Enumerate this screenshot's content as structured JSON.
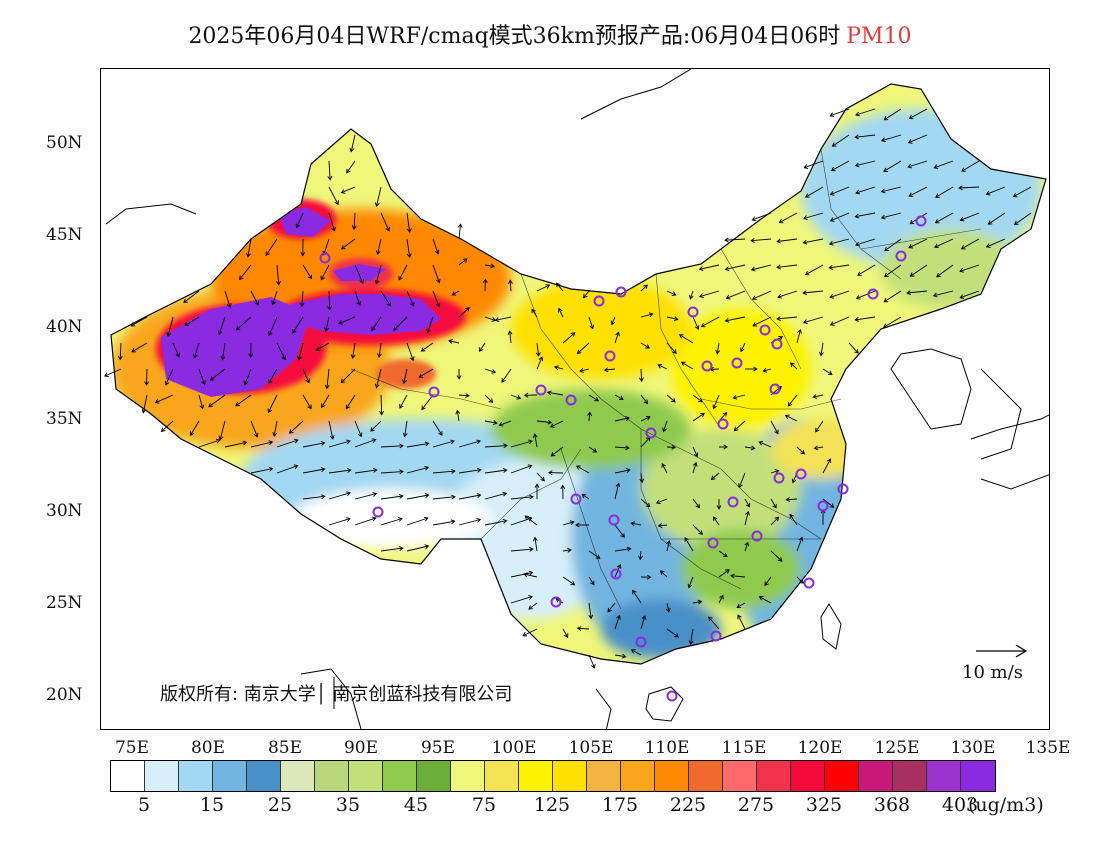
{
  "header": {
    "title": "2025年06月04日WRF/cmaq模式36km预报产品:06月04日06时",
    "variable": "PM10"
  },
  "map": {
    "lat_ticks": [
      "50N",
      "45N",
      "40N",
      "35N",
      "30N",
      "25N",
      "20N"
    ],
    "lon_ticks": [
      "75E",
      "80E",
      "85E",
      "90E",
      "95E",
      "100E",
      "105E",
      "110E",
      "115E",
      "120E",
      "125E",
      "130E",
      "135E"
    ],
    "copyright": "版权所有: 南京大学│ 南京创蓝科技有限公司",
    "wind_reference": "10 m/s",
    "colors": {
      "background": "#ffffff",
      "coastline": "#000000",
      "city_marker": "#8a2be2"
    }
  },
  "colorbar": {
    "colors": [
      "#ffffff",
      "#d6effa",
      "#a3d8f2",
      "#72b5e0",
      "#4a90c8",
      "#dce8b8",
      "#b8d77d",
      "#c2e07a",
      "#8fca4f",
      "#6aad38",
      "#eef77a",
      "#f3e254",
      "#fff200",
      "#ffe000",
      "#f5b342",
      "#f9a61c",
      "#ff8800",
      "#f06a2d",
      "#ff6b6b",
      "#f0334a",
      "#f50a3c",
      "#ff0000",
      "#c81878",
      "#a83060",
      "#9a33cc",
      "#8a2be2"
    ],
    "labels": [
      "5",
      "15",
      "25",
      "35",
      "45",
      "75",
      "125",
      "175",
      "225",
      "275",
      "325",
      "368",
      "403"
    ],
    "unit": "(ug/m3)"
  }
}
